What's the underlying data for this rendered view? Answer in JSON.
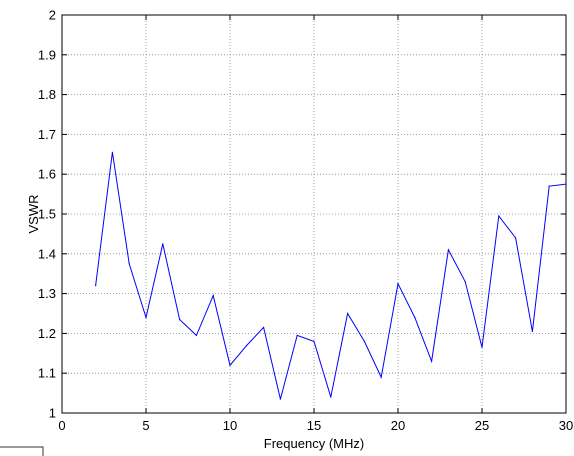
{
  "chart_data": {
    "type": "line",
    "title": "",
    "xlabel": "Frequency (MHz)",
    "ylabel": "VSWR",
    "xlim": [
      0,
      30
    ],
    "ylim": [
      1,
      2
    ],
    "xticks": [
      0,
      5,
      10,
      15,
      20,
      25,
      30
    ],
    "yticks": [
      1,
      1.1,
      1.2,
      1.3,
      1.4,
      1.5,
      1.6,
      1.7,
      1.8,
      1.9,
      2
    ],
    "grid": true,
    "legend": "none",
    "series": [
      {
        "color": "#0000ff",
        "x": [
          2,
          3,
          4,
          5,
          6,
          7,
          8,
          9,
          10,
          11,
          12,
          13,
          14,
          15,
          16,
          17,
          18,
          19,
          20,
          21,
          22,
          23,
          24,
          25,
          26,
          27,
          28,
          29,
          30
        ],
        "values": [
          1.32,
          1.655,
          1.375,
          1.24,
          1.425,
          1.235,
          1.195,
          1.295,
          1.12,
          1.17,
          1.215,
          1.035,
          1.195,
          1.18,
          1.04,
          1.25,
          1.18,
          1.09,
          1.325,
          1.24,
          1.13,
          1.41,
          1.33,
          1.165,
          1.495,
          1.44,
          1.205,
          1.57,
          1.575
        ]
      }
    ]
  }
}
